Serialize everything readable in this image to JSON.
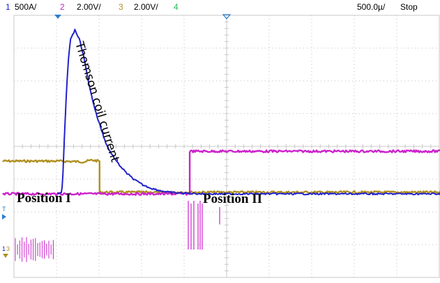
{
  "header": {
    "ch1_num": "1",
    "ch1_scale": "500A/",
    "ch2_num": "2",
    "ch2_scale": "2.00V/",
    "ch3_num": "3",
    "ch3_scale": "2.00V/",
    "ch4_num": "4",
    "timebase": "500.0µ/",
    "run_state": "Stop"
  },
  "markers": {
    "trigger_level": "T",
    "ch1_ground": "1",
    "ch23_ground": "3"
  },
  "annotations": {
    "coil_current": "Thomson coil current",
    "position_1": "Position I",
    "position_2": "Position II"
  },
  "colors": {
    "ch1": "#2222cc",
    "ch2": "#cc22cc",
    "ch3": "#b09020",
    "ch4": "#22bb55",
    "grid": "#c8c8c8",
    "grid_dots": "#bdbdbd",
    "marker": "#2a7fd0"
  },
  "chart_data": {
    "type": "line",
    "x_divisions": 10,
    "y_divisions": 8,
    "grid": true,
    "series": [
      {
        "channel": "1",
        "color": "#2222cc",
        "x": [
          0,
          0.05,
          0.08,
          0.1,
          0.12,
          0.15,
          0.2,
          0.25,
          0.3,
          0.4,
          0.5,
          0.6,
          0.7,
          0.8,
          0.9,
          1.0,
          1.1,
          1.2,
          1.4,
          1.6,
          1.8,
          2.0,
          2.2,
          2.4,
          2.6,
          2.8,
          3.0,
          3.2,
          3.5,
          3.8,
          4.0,
          5.0,
          6.0,
          8.0,
          9.8
        ],
        "y": [
          2.55,
          2.56,
          2.6,
          2.75,
          3.2,
          4.2,
          5.6,
          6.7,
          7.3,
          7.55,
          7.3,
          6.8,
          6.1,
          5.5,
          5.0,
          4.6,
          4.2,
          3.9,
          3.5,
          3.2,
          2.98,
          2.82,
          2.72,
          2.65,
          2.6,
          2.58,
          2.57,
          2.56,
          2.55,
          2.55,
          2.55,
          2.55,
          2.55,
          2.55,
          2.55
        ]
      },
      {
        "channel": "3",
        "color": "#b09020",
        "x": [
          -1.3,
          0.0,
          0.6,
          0.8,
          0.98,
          0.98,
          1.0,
          9.8
        ],
        "y": [
          3.55,
          3.55,
          3.53,
          3.58,
          3.55,
          2.55,
          2.6,
          2.6
        ]
      },
      {
        "channel": "2",
        "color": "#cc22cc",
        "x": [
          -1.3,
          0.0,
          1.0,
          2.0,
          3.0,
          3.1,
          3.1,
          3.5,
          9.8
        ],
        "y": [
          2.55,
          2.55,
          2.55,
          2.55,
          2.55,
          2.55,
          3.85,
          3.85,
          3.85
        ]
      }
    ]
  }
}
